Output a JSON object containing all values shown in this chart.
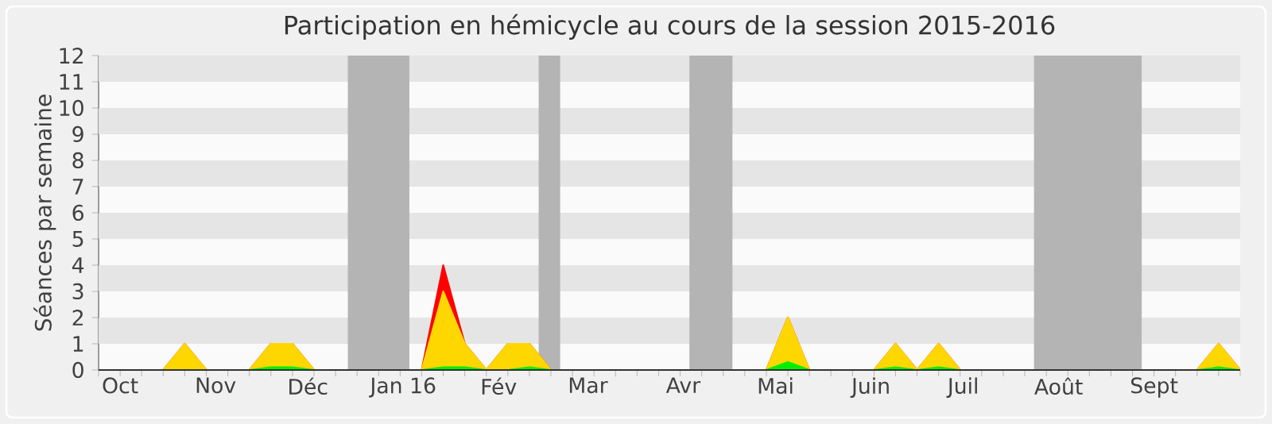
{
  "chart_data": {
    "type": "area",
    "title": "Participation en hémicycle au cours de la session 2015-2016",
    "ylabel": "Séances par semaine",
    "x": [
      "2015-09-24",
      "2015-10-01",
      "2015-10-08",
      "2015-10-15",
      "2015-10-22",
      "2015-10-29",
      "2015-11-05",
      "2015-11-12",
      "2015-11-19",
      "2015-11-26",
      "2015-12-03",
      "2015-12-10",
      "2015-12-17",
      "2015-12-24",
      "2015-12-31",
      "2016-01-07",
      "2016-01-14",
      "2016-01-21",
      "2016-01-28",
      "2016-02-04",
      "2016-02-11",
      "2016-02-18",
      "2016-02-25",
      "2016-03-03",
      "2016-03-10",
      "2016-03-17",
      "2016-03-24",
      "2016-03-31",
      "2016-04-07",
      "2016-04-14",
      "2016-04-21",
      "2016-04-28",
      "2016-05-05",
      "2016-05-12",
      "2016-05-19",
      "2016-05-26",
      "2016-06-02",
      "2016-06-09",
      "2016-06-16",
      "2016-06-23",
      "2016-06-30",
      "2016-07-07",
      "2016-07-14",
      "2016-07-21",
      "2016-07-28",
      "2016-08-04",
      "2016-08-11",
      "2016-08-18",
      "2016-08-25",
      "2016-09-01",
      "2016-09-08",
      "2016-09-15",
      "2016-09-22",
      "2016-09-29"
    ],
    "xlim": [
      "2015-09-24",
      "2016-09-29"
    ],
    "xticks": [
      {
        "value": "2015-10-01",
        "label": "Oct"
      },
      {
        "value": "2015-11-01",
        "label": "Nov"
      },
      {
        "value": "2015-12-01",
        "label": "Déc"
      },
      {
        "value": "2016-01-01",
        "label": "Jan 16"
      },
      {
        "value": "2016-02-01",
        "label": "Fév"
      },
      {
        "value": "2016-03-01",
        "label": "Mar"
      },
      {
        "value": "2016-04-01",
        "label": "Avr"
      },
      {
        "value": "2016-05-01",
        "label": "Mai"
      },
      {
        "value": "2016-06-01",
        "label": "Juin"
      },
      {
        "value": "2016-07-01",
        "label": "Juil"
      },
      {
        "value": "2016-08-01",
        "label": "Août"
      },
      {
        "value": "2016-09-01",
        "label": "Sept"
      }
    ],
    "bands": [
      {
        "axis": "x",
        "from": "2015-12-14",
        "to": "2016-01-03",
        "color": "#b4b4b4"
      },
      {
        "axis": "x",
        "from": "2016-02-14",
        "to": "2016-02-21",
        "color": "#b4b4b4"
      },
      {
        "axis": "x",
        "from": "2016-04-03",
        "to": "2016-04-17",
        "color": "#b4b4b4"
      },
      {
        "axis": "x",
        "from": "2016-07-24",
        "to": "2016-08-28",
        "color": "#b4b4b4"
      }
    ],
    "series": [
      {
        "color": "#ff0000",
        "values": [
          0,
          0,
          0,
          0,
          1,
          0,
          0,
          0,
          1,
          1,
          0,
          0,
          0,
          0,
          0,
          0,
          4,
          1,
          0,
          1,
          1,
          0,
          0,
          0,
          0,
          0,
          0,
          0,
          0,
          0,
          0,
          0,
          2,
          0,
          0,
          0,
          0,
          1,
          0,
          1,
          0,
          0,
          0,
          0,
          0,
          0,
          0,
          0,
          0,
          0,
          0,
          0,
          1,
          0
        ]
      },
      {
        "color": "#ffd700",
        "values": [
          0,
          0,
          0,
          0,
          1,
          0,
          0,
          0,
          1,
          1,
          0,
          0,
          0,
          0,
          0,
          0,
          3,
          1,
          0,
          1,
          1,
          0,
          0,
          0,
          0,
          0,
          0,
          0,
          0,
          0,
          0,
          0,
          2,
          0,
          0,
          0,
          0,
          1,
          0,
          1,
          0,
          0,
          0,
          0,
          0,
          0,
          0,
          0,
          0,
          0,
          0,
          0,
          1,
          0
        ]
      },
      {
        "color": "#00ee00",
        "values": [
          0,
          0,
          0,
          0,
          0,
          0,
          0,
          0,
          0.1,
          0.1,
          0,
          0,
          0,
          0,
          0,
          0,
          0.1,
          0.1,
          0,
          0,
          0.1,
          0,
          0,
          0,
          0,
          0,
          0,
          0,
          0,
          0,
          0,
          0,
          0.3,
          0,
          0,
          0,
          0,
          0.1,
          0,
          0.1,
          0,
          0,
          0,
          0,
          0,
          0,
          0,
          0,
          0,
          0,
          0,
          0,
          0.1,
          0
        ]
      }
    ],
    "ylim": [
      0,
      12
    ],
    "yticks": [
      0,
      1,
      2,
      3,
      4,
      5,
      6,
      7,
      8,
      9,
      10,
      11,
      12
    ]
  }
}
